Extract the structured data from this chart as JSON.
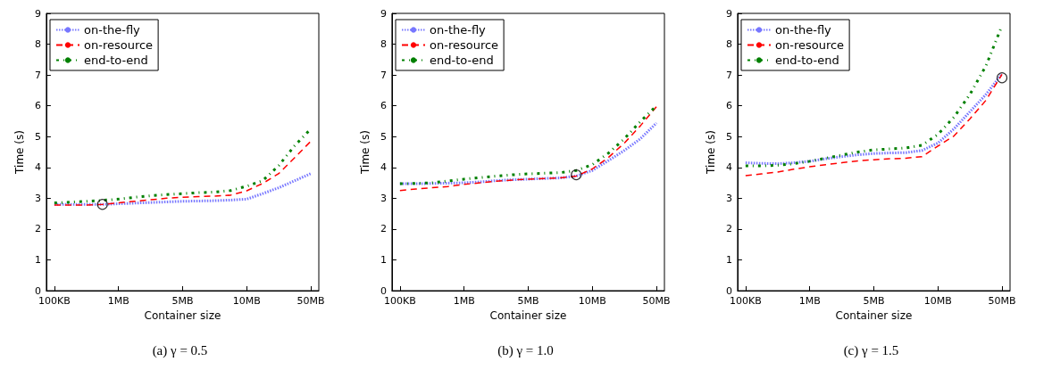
{
  "chart_data": [
    {
      "type": "line",
      "title": "(a) γ = 0.5",
      "xlabel": "Container size",
      "ylabel": "Time (s)",
      "categories": [
        "100KB",
        null,
        null,
        null,
        "1MB",
        null,
        null,
        null,
        "5MB",
        null,
        null,
        null,
        "10MB",
        null,
        null,
        null,
        "50MB"
      ],
      "ylim": [
        0,
        9
      ],
      "yticks": [
        0,
        1,
        2,
        3,
        4,
        5,
        6,
        7,
        8,
        9
      ],
      "grid": false,
      "legend": "top left",
      "marker": "none",
      "series": [
        {
          "name": "on-the-fly",
          "color": "#7777ff",
          "line_style": "dotted",
          "values": [
            2.8,
            2.8,
            2.8,
            2.8,
            2.82,
            2.84,
            2.86,
            2.88,
            2.9,
            2.91,
            2.92,
            2.94,
            2.97,
            3.15,
            3.34,
            3.57,
            3.8
          ]
        },
        {
          "name": "on-resource",
          "color": "#ff0000",
          "line_style": "dashed",
          "values": [
            2.78,
            2.78,
            2.78,
            2.8,
            2.85,
            2.9,
            2.95,
            3.0,
            3.03,
            3.05,
            3.07,
            3.1,
            3.24,
            3.48,
            3.8,
            4.32,
            4.85
          ]
        },
        {
          "name": "end-to-end",
          "color": "#008000",
          "line_style": "dashdot",
          "values": [
            2.85,
            2.87,
            2.9,
            2.93,
            2.97,
            3.03,
            3.08,
            3.12,
            3.15,
            3.18,
            3.2,
            3.25,
            3.39,
            3.57,
            4.06,
            4.71,
            5.25
          ]
        },
        {
          "type": "scatter",
          "color": "#000000",
          "marker": "circle",
          "values": [
            null,
            null,
            null,
            2.8,
            null,
            null,
            null,
            null,
            null,
            null,
            null,
            null,
            null,
            null,
            null,
            null,
            null
          ]
        }
      ]
    },
    {
      "type": "line",
      "title": "(b) γ = 1.0",
      "xlabel": "Container size",
      "ylabel": "Time (s)",
      "categories": [
        "100KB",
        null,
        null,
        null,
        "1MB",
        null,
        null,
        null,
        "5MB",
        null,
        null,
        null,
        "10MB",
        null,
        null,
        null,
        "50MB"
      ],
      "ylim": [
        0,
        9
      ],
      "yticks": [
        0,
        1,
        2,
        3,
        4,
        5,
        6,
        7,
        8,
        9
      ],
      "grid": false,
      "legend": "top left",
      "marker": "none",
      "series": [
        {
          "name": "on-the-fly",
          "color": "#7777ff",
          "line_style": "dotted",
          "values": [
            3.47,
            3.47,
            3.48,
            3.49,
            3.5,
            3.53,
            3.57,
            3.6,
            3.62,
            3.64,
            3.66,
            3.72,
            3.9,
            4.22,
            4.55,
            4.93,
            5.44
          ]
        },
        {
          "name": "on-resource",
          "color": "#ff0000",
          "line_style": "dashed",
          "values": [
            3.25,
            3.3,
            3.34,
            3.38,
            3.45,
            3.5,
            3.55,
            3.59,
            3.62,
            3.64,
            3.66,
            3.72,
            3.95,
            4.32,
            4.79,
            5.35,
            5.97
          ]
        },
        {
          "name": "end-to-end",
          "color": "#008000",
          "line_style": "dashdot",
          "values": [
            3.47,
            3.48,
            3.5,
            3.56,
            3.62,
            3.67,
            3.72,
            3.76,
            3.79,
            3.81,
            3.83,
            3.9,
            4.09,
            4.46,
            4.93,
            5.49,
            6.0
          ]
        },
        {
          "type": "scatter",
          "color": "#000000",
          "marker": "circle",
          "values": [
            null,
            null,
            null,
            null,
            null,
            null,
            null,
            null,
            null,
            null,
            null,
            3.76,
            null,
            null,
            null,
            null,
            null
          ]
        }
      ]
    },
    {
      "type": "line",
      "title": "(c) γ = 1.5",
      "xlabel": "Container size",
      "ylabel": "Time (s)",
      "categories": [
        "100KB",
        null,
        null,
        null,
        "1MB",
        null,
        null,
        null,
        "5MB",
        null,
        null,
        null,
        "10MB",
        null,
        null,
        null,
        "50MB"
      ],
      "ylim": [
        0,
        9
      ],
      "yticks": [
        0,
        1,
        2,
        3,
        4,
        5,
        6,
        7,
        8,
        9
      ],
      "grid": false,
      "legend": "top left",
      "marker": "none",
      "series": [
        {
          "name": "on-the-fly",
          "color": "#7777ff",
          "line_style": "dotted",
          "values": [
            4.15,
            4.13,
            4.12,
            4.15,
            4.2,
            4.28,
            4.35,
            4.41,
            4.45,
            4.47,
            4.48,
            4.55,
            4.79,
            5.25,
            5.81,
            6.37,
            7.04
          ]
        },
        {
          "name": "on-resource",
          "color": "#ff0000",
          "line_style": "dashed",
          "values": [
            3.73,
            3.79,
            3.85,
            3.94,
            4.02,
            4.09,
            4.15,
            4.21,
            4.25,
            4.28,
            4.3,
            4.35,
            4.69,
            5.02,
            5.58,
            6.18,
            7.02
          ]
        },
        {
          "name": "end-to-end",
          "color": "#008000",
          "line_style": "dashdot",
          "values": [
            4.05,
            4.05,
            4.07,
            4.12,
            4.2,
            4.3,
            4.4,
            4.5,
            4.57,
            4.6,
            4.63,
            4.72,
            5.07,
            5.63,
            6.37,
            7.3,
            8.6
          ]
        },
        {
          "type": "scatter",
          "color": "#000000",
          "marker": "circle",
          "values": [
            null,
            null,
            null,
            null,
            null,
            null,
            null,
            null,
            null,
            null,
            null,
            null,
            null,
            null,
            null,
            null,
            6.91
          ]
        }
      ]
    }
  ]
}
